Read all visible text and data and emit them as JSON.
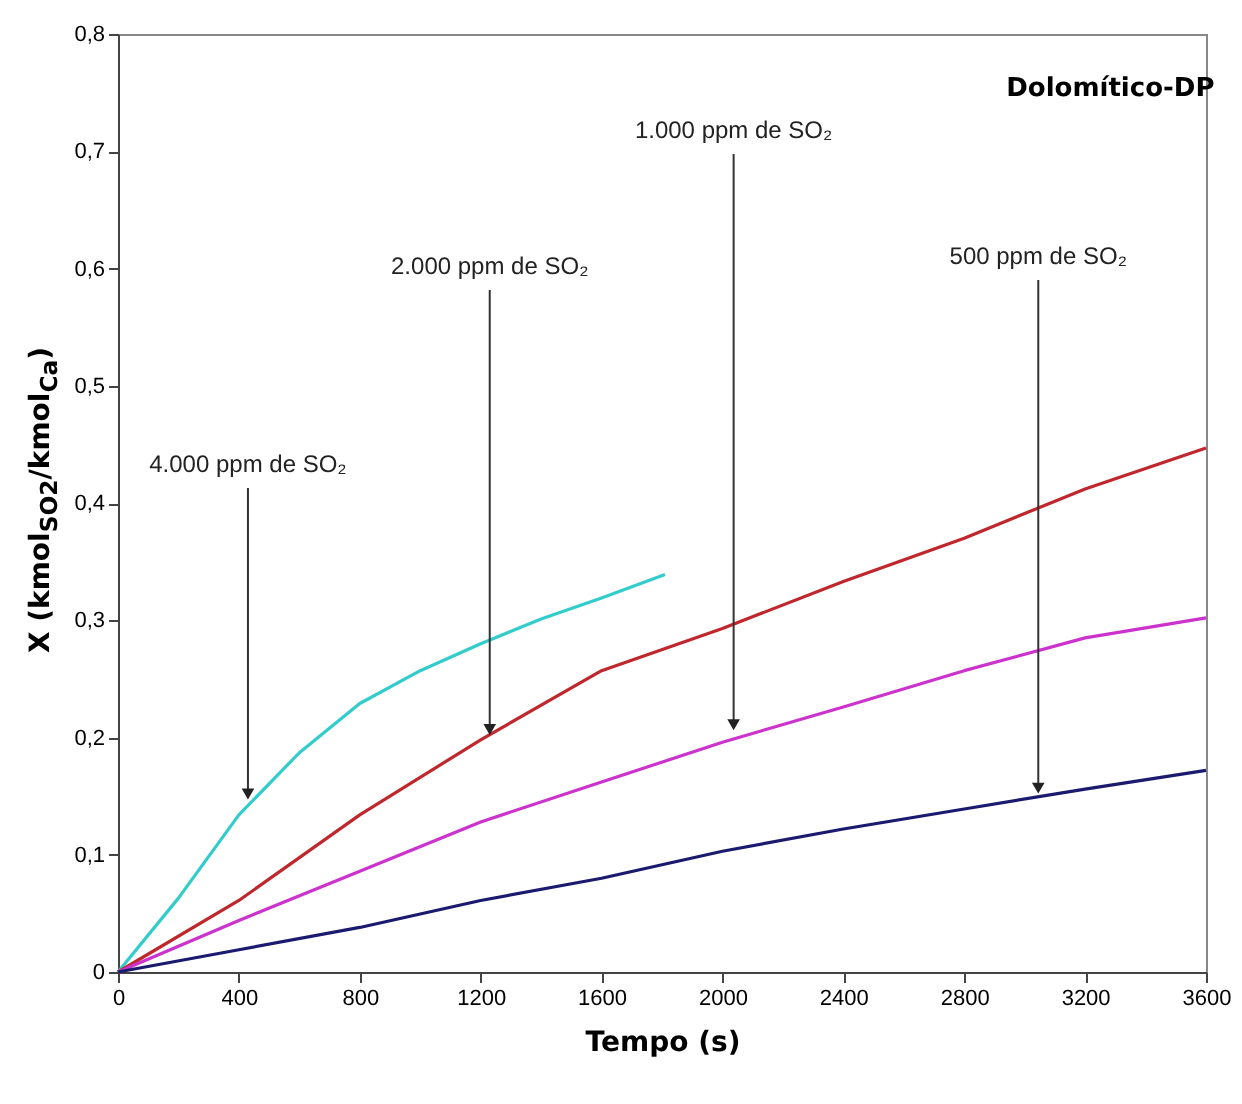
{
  "chart_data": {
    "type": "line",
    "title": "Dolomítico-DP",
    "xlabel": "Tempo (s)",
    "ylabel": "X (kmol$_{SO2}$/kmol$_{Ca}$)",
    "series": [
      {
        "color": "#33cccc",
        "x": [
          0,
          200,
          400,
          600,
          800,
          1000,
          1200,
          1400,
          1600,
          1810
        ],
        "values": [
          0,
          0.063,
          0.134,
          0.187,
          0.229,
          0.257,
          0.28,
          0.301,
          0.319,
          0.339
        ]
      },
      {
        "color": "#c0272d",
        "x": [
          0,
          400,
          800,
          1200,
          1600,
          2000,
          2400,
          2800,
          3200,
          3600
        ],
        "values": [
          0,
          0.061,
          0.134,
          0.198,
          0.257,
          0.293,
          0.333,
          0.37,
          0.412,
          0.447
        ]
      },
      {
        "color": "#cc33cc",
        "x": [
          0,
          400,
          800,
          1200,
          1600,
          2000,
          2400,
          2800,
          3200,
          3600
        ],
        "values": [
          0,
          0.044,
          0.086,
          0.128,
          0.162,
          0.196,
          0.226,
          0.257,
          0.285,
          0.302
        ]
      },
      {
        "color": "#1a1a6e",
        "x": [
          0,
          400,
          800,
          1200,
          1600,
          2000,
          2400,
          2800,
          3200,
          3600
        ],
        "values": [
          0,
          0.019,
          0.038,
          0.061,
          0.08,
          0.103,
          0.122,
          0.139,
          0.156,
          0.172
        ]
      }
    ],
    "annotations": [
      {
        "text": "4.000 ppm de SO₂",
        "x": 430,
        "y": 0.145
      },
      {
        "text": "2.000 ppm de SO₂",
        "x": 1230,
        "y": 0.2
      },
      {
        "text": "1.000 ppm de SO₂",
        "x": 2037,
        "y": 0.204
      },
      {
        "text": "500 ppm de SO₂",
        "x": 3045,
        "y": 0.15
      }
    ],
    "xlim": [
      0,
      3600
    ],
    "xticks": [
      0,
      400,
      800,
      1200,
      1600,
      2000,
      2400,
      2800,
      3200,
      3600
    ],
    "ylim": [
      0,
      0.8
    ],
    "yticks": [
      0,
      {
        "value": 0.1,
        "label": "0,1"
      },
      {
        "value": 0.2,
        "label": "0,2"
      },
      {
        "value": 0.3,
        "label": "0,3"
      },
      {
        "value": 0.4,
        "label": "0,4"
      },
      {
        "value": 0.5,
        "label": "0,5"
      },
      {
        "value": 0.6,
        "label": "0,6"
      },
      {
        "value": 0.7,
        "label": "0,7"
      },
      {
        "value": 0.8,
        "label": "0,8"
      }
    ],
    "grid": false,
    "marker": "none",
    "line_style": "solid"
  }
}
